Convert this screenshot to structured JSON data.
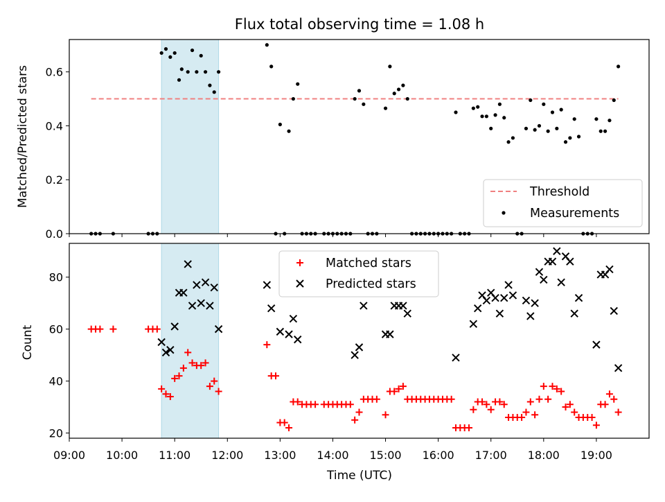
{
  "chart_data": [
    {
      "type": "scatter",
      "title": "Flux total observing time = 1.08 h",
      "xlabel": "",
      "ylabel": "Matched/Predicted stars",
      "xlim": [
        "09:00",
        "20:00"
      ],
      "ylim": [
        0,
        0.72
      ],
      "yticks": [
        "0.0",
        "0.2",
        "0.4",
        "0.6"
      ],
      "highlight_span": [
        "10:45",
        "11:50"
      ],
      "threshold": {
        "value": 0.5,
        "label": "Threshold",
        "color": "#f08080"
      },
      "legend": {
        "position": "lower-right",
        "entries": [
          "Threshold",
          "Measurements"
        ]
      },
      "series": [
        {
          "name": "Measurements",
          "color": "#000000",
          "points": [
            [
              "09:25",
              0.0
            ],
            [
              "09:30",
              0.0
            ],
            [
              "09:35",
              0.0
            ],
            [
              "09:50",
              0.0
            ],
            [
              "10:30",
              0.0
            ],
            [
              "10:35",
              0.0
            ],
            [
              "10:40",
              0.0
            ],
            [
              "10:45",
              0.67
            ],
            [
              "10:50",
              0.685
            ],
            [
              "10:55",
              0.655
            ],
            [
              "11:00",
              0.67
            ],
            [
              "11:05",
              0.57
            ],
            [
              "11:08",
              0.61
            ],
            [
              "11:15",
              0.6
            ],
            [
              "11:20",
              0.68
            ],
            [
              "11:25",
              0.6
            ],
            [
              "11:30",
              0.66
            ],
            [
              "11:35",
              0.6
            ],
            [
              "11:40",
              0.55
            ],
            [
              "11:45",
              0.525
            ],
            [
              "11:50",
              0.6
            ],
            [
              "12:45",
              0.7
            ],
            [
              "12:50",
              0.62
            ],
            [
              "12:55",
              0.0
            ],
            [
              "13:00",
              0.405
            ],
            [
              "13:05",
              0.0
            ],
            [
              "13:10",
              0.38
            ],
            [
              "13:15",
              0.5
            ],
            [
              "13:20",
              0.555
            ],
            [
              "13:25",
              0.0
            ],
            [
              "13:30",
              0.0
            ],
            [
              "13:35",
              0.0
            ],
            [
              "13:40",
              0.0
            ],
            [
              "13:50",
              0.0
            ],
            [
              "13:55",
              0.0
            ],
            [
              "14:00",
              0.0
            ],
            [
              "14:05",
              0.0
            ],
            [
              "14:10",
              0.0
            ],
            [
              "14:15",
              0.0
            ],
            [
              "14:20",
              0.0
            ],
            [
              "14:25",
              0.5
            ],
            [
              "14:30",
              0.53
            ],
            [
              "14:35",
              0.48
            ],
            [
              "14:40",
              0.0
            ],
            [
              "14:45",
              0.0
            ],
            [
              "14:50",
              0.0
            ],
            [
              "15:00",
              0.465
            ],
            [
              "15:05",
              0.62
            ],
            [
              "15:10",
              0.52
            ],
            [
              "15:15",
              0.535
            ],
            [
              "15:20",
              0.55
            ],
            [
              "15:25",
              0.5
            ],
            [
              "15:30",
              0.0
            ],
            [
              "15:35",
              0.0
            ],
            [
              "15:40",
              0.0
            ],
            [
              "15:45",
              0.0
            ],
            [
              "15:50",
              0.0
            ],
            [
              "15:55",
              0.0
            ],
            [
              "16:00",
              0.0
            ],
            [
              "16:05",
              0.0
            ],
            [
              "16:10",
              0.0
            ],
            [
              "16:15",
              0.0
            ],
            [
              "16:20",
              0.45
            ],
            [
              "16:25",
              0.0
            ],
            [
              "16:30",
              0.0
            ],
            [
              "16:35",
              0.0
            ],
            [
              "16:40",
              0.465
            ],
            [
              "16:45",
              0.47
            ],
            [
              "16:50",
              0.435
            ],
            [
              "16:55",
              0.435
            ],
            [
              "17:00",
              0.39
            ],
            [
              "17:05",
              0.44
            ],
            [
              "17:10",
              0.48
            ],
            [
              "17:15",
              0.43
            ],
            [
              "17:20",
              0.34
            ],
            [
              "17:25",
              0.355
            ],
            [
              "17:30",
              0.0
            ],
            [
              "17:35",
              0.0
            ],
            [
              "17:40",
              0.39
            ],
            [
              "17:45",
              0.495
            ],
            [
              "17:50",
              0.385
            ],
            [
              "17:55",
              0.4
            ],
            [
              "18:00",
              0.48
            ],
            [
              "18:05",
              0.38
            ],
            [
              "18:10",
              0.45
            ],
            [
              "18:15",
              0.39
            ],
            [
              "18:20",
              0.46
            ],
            [
              "18:25",
              0.34
            ],
            [
              "18:30",
              0.355
            ],
            [
              "18:35",
              0.425
            ],
            [
              "18:40",
              0.36
            ],
            [
              "18:45",
              0.0
            ],
            [
              "18:50",
              0.0
            ],
            [
              "18:55",
              0.0
            ],
            [
              "19:00",
              0.425
            ],
            [
              "19:05",
              0.38
            ],
            [
              "19:10",
              0.38
            ],
            [
              "19:15",
              0.42
            ],
            [
              "19:20",
              0.495
            ],
            [
              "19:25",
              0.62
            ]
          ]
        }
      ]
    },
    {
      "type": "scatter",
      "title": "",
      "xlabel": "Time (UTC)",
      "ylabel": "Count",
      "xlim": [
        "09:00",
        "20:00"
      ],
      "ylim": [
        18,
        93
      ],
      "xticks": [
        "09:00",
        "10:00",
        "11:00",
        "12:00",
        "13:00",
        "14:00",
        "15:00",
        "16:00",
        "17:00",
        "18:00",
        "19:00"
      ],
      "yticks": [
        "20",
        "40",
        "60",
        "80"
      ],
      "highlight_span": [
        "10:45",
        "11:50"
      ],
      "legend": {
        "position": "top-center",
        "entries": [
          "Matched stars",
          "Predicted stars"
        ]
      },
      "series": [
        {
          "name": "Matched stars",
          "marker": "plus",
          "color": "#ff0000",
          "points": [
            [
              "09:25",
              60
            ],
            [
              "09:30",
              60
            ],
            [
              "09:35",
              60
            ],
            [
              "09:50",
              60
            ],
            [
              "10:30",
              60
            ],
            [
              "10:35",
              60
            ],
            [
              "10:40",
              60
            ],
            [
              "10:45",
              37
            ],
            [
              "10:50",
              35
            ],
            [
              "10:55",
              34
            ],
            [
              "11:00",
              41
            ],
            [
              "11:05",
              42
            ],
            [
              "11:10",
              45
            ],
            [
              "11:15",
              51
            ],
            [
              "11:20",
              47
            ],
            [
              "11:25",
              46
            ],
            [
              "11:30",
              46
            ],
            [
              "11:35",
              47
            ],
            [
              "11:40",
              38
            ],
            [
              "11:45",
              40
            ],
            [
              "11:50",
              36
            ],
            [
              "12:45",
              54
            ],
            [
              "12:50",
              42
            ],
            [
              "12:55",
              42
            ],
            [
              "13:00",
              24
            ],
            [
              "13:05",
              24
            ],
            [
              "13:10",
              22
            ],
            [
              "13:15",
              32
            ],
            [
              "13:20",
              32
            ],
            [
              "13:25",
              31
            ],
            [
              "13:30",
              31
            ],
            [
              "13:35",
              31
            ],
            [
              "13:40",
              31
            ],
            [
              "13:50",
              31
            ],
            [
              "13:55",
              31
            ],
            [
              "14:00",
              31
            ],
            [
              "14:05",
              31
            ],
            [
              "14:10",
              31
            ],
            [
              "14:15",
              31
            ],
            [
              "14:20",
              31
            ],
            [
              "14:25",
              25
            ],
            [
              "14:30",
              28
            ],
            [
              "14:35",
              33
            ],
            [
              "14:40",
              33
            ],
            [
              "14:45",
              33
            ],
            [
              "14:50",
              33
            ],
            [
              "15:00",
              27
            ],
            [
              "15:05",
              36
            ],
            [
              "15:10",
              36
            ],
            [
              "15:15",
              37
            ],
            [
              "15:20",
              38
            ],
            [
              "15:25",
              33
            ],
            [
              "15:30",
              33
            ],
            [
              "15:35",
              33
            ],
            [
              "15:40",
              33
            ],
            [
              "15:45",
              33
            ],
            [
              "15:50",
              33
            ],
            [
              "15:55",
              33
            ],
            [
              "16:00",
              33
            ],
            [
              "16:05",
              33
            ],
            [
              "16:10",
              33
            ],
            [
              "16:15",
              33
            ],
            [
              "16:20",
              22
            ],
            [
              "16:25",
              22
            ],
            [
              "16:30",
              22
            ],
            [
              "16:35",
              22
            ],
            [
              "16:40",
              29
            ],
            [
              "16:45",
              32
            ],
            [
              "16:50",
              32
            ],
            [
              "16:55",
              31
            ],
            [
              "17:00",
              29
            ],
            [
              "17:05",
              32
            ],
            [
              "17:10",
              32
            ],
            [
              "17:15",
              31
            ],
            [
              "17:20",
              26
            ],
            [
              "17:25",
              26
            ],
            [
              "17:30",
              26
            ],
            [
              "17:35",
              26
            ],
            [
              "17:40",
              28
            ],
            [
              "17:45",
              32
            ],
            [
              "17:50",
              27
            ],
            [
              "17:55",
              33
            ],
            [
              "18:00",
              38
            ],
            [
              "18:05",
              33
            ],
            [
              "18:10",
              38
            ],
            [
              "18:15",
              37
            ],
            [
              "18:20",
              36
            ],
            [
              "18:25",
              30
            ],
            [
              "18:30",
              31
            ],
            [
              "18:35",
              28
            ],
            [
              "18:40",
              26
            ],
            [
              "18:45",
              26
            ],
            [
              "18:50",
              26
            ],
            [
              "18:55",
              26
            ],
            [
              "19:00",
              23
            ],
            [
              "19:05",
              31
            ],
            [
              "19:10",
              31
            ],
            [
              "19:15",
              35
            ],
            [
              "19:20",
              33
            ],
            [
              "19:25",
              28
            ]
          ]
        },
        {
          "name": "Predicted stars",
          "marker": "x",
          "color": "#000000",
          "points": [
            [
              "10:45",
              55
            ],
            [
              "10:50",
              51
            ],
            [
              "10:55",
              52
            ],
            [
              "11:00",
              61
            ],
            [
              "11:05",
              74
            ],
            [
              "11:10",
              74
            ],
            [
              "11:15",
              85
            ],
            [
              "11:20",
              69
            ],
            [
              "11:25",
              77
            ],
            [
              "11:30",
              70
            ],
            [
              "11:35",
              78
            ],
            [
              "11:40",
              69
            ],
            [
              "11:45",
              76
            ],
            [
              "11:50",
              60
            ],
            [
              "12:45",
              77
            ],
            [
              "12:50",
              68
            ],
            [
              "13:00",
              59
            ],
            [
              "13:10",
              58
            ],
            [
              "13:15",
              64
            ],
            [
              "13:20",
              56
            ],
            [
              "14:25",
              50
            ],
            [
              "14:30",
              53
            ],
            [
              "14:35",
              69
            ],
            [
              "15:00",
              58
            ],
            [
              "15:05",
              58
            ],
            [
              "15:10",
              69
            ],
            [
              "15:15",
              69
            ],
            [
              "15:20",
              69
            ],
            [
              "15:25",
              66
            ],
            [
              "16:20",
              49
            ],
            [
              "16:40",
              62
            ],
            [
              "16:45",
              68
            ],
            [
              "16:50",
              73
            ],
            [
              "16:55",
              71
            ],
            [
              "17:00",
              74
            ],
            [
              "17:05",
              72
            ],
            [
              "17:10",
              66
            ],
            [
              "17:15",
              72
            ],
            [
              "17:20",
              77
            ],
            [
              "17:25",
              73
            ],
            [
              "17:40",
              71
            ],
            [
              "17:45",
              65
            ],
            [
              "17:50",
              70
            ],
            [
              "17:55",
              82
            ],
            [
              "18:00",
              79
            ],
            [
              "18:05",
              86
            ],
            [
              "18:10",
              86
            ],
            [
              "18:15",
              90
            ],
            [
              "18:20",
              78
            ],
            [
              "18:25",
              88
            ],
            [
              "18:30",
              86
            ],
            [
              "18:35",
              66
            ],
            [
              "18:40",
              72
            ],
            [
              "19:00",
              54
            ],
            [
              "19:05",
              81
            ],
            [
              "19:10",
              81
            ],
            [
              "19:15",
              83
            ],
            [
              "19:20",
              67
            ],
            [
              "19:25",
              45
            ]
          ]
        }
      ]
    }
  ]
}
